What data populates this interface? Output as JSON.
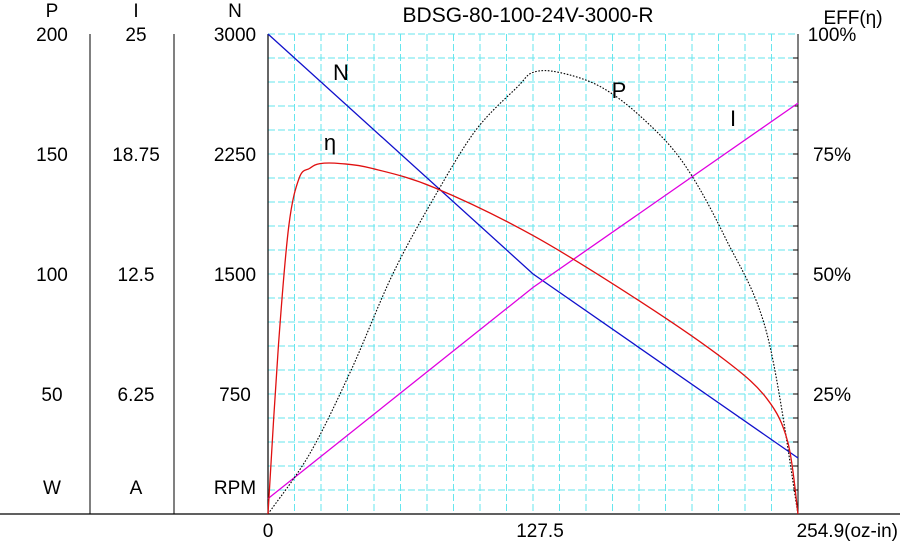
{
  "chart_data": {
    "type": "line",
    "title": "BDSG-80-100-24V-3000-R",
    "colors": {
      "grid": "#66e6ee",
      "N": "#1111cc",
      "eta": "#e01010",
      "I": "#e000e0",
      "P": "#000000"
    },
    "x_axis": {
      "range": [
        0,
        254.9
      ],
      "tick_labels": [
        "0",
        "127.5",
        "254.9(oz-in)"
      ]
    },
    "axes": [
      {
        "key": "P",
        "header": "P",
        "unit": "W",
        "range": [
          0,
          200
        ],
        "ticks": [
          "50",
          "100",
          "150",
          "200"
        ]
      },
      {
        "key": "I",
        "header": "I",
        "unit": "A",
        "range": [
          0,
          25
        ],
        "ticks": [
          "6.25",
          "12.5",
          "18.75",
          "25"
        ]
      },
      {
        "key": "N",
        "header": "N",
        "unit": "RPM",
        "range": [
          0,
          3000
        ],
        "ticks": [
          "750",
          "1500",
          "2250",
          "3000"
        ]
      }
    ],
    "eff_axis": {
      "header": "EFF(η)",
      "range": [
        0,
        100
      ],
      "ticks": [
        "25%",
        "50%",
        "75%",
        "100%"
      ]
    },
    "grid": true,
    "series": [
      {
        "name": "N",
        "axis": "N",
        "style": "solid",
        "x": [
          0,
          127.5,
          254.9
        ],
        "y": [
          3000,
          1500,
          350
        ]
      },
      {
        "name": "I",
        "axis": "I",
        "style": "solid",
        "x": [
          0,
          127.5,
          254.9
        ],
        "y": [
          0.8,
          11.8,
          21.4
        ]
      },
      {
        "name": "P",
        "axis": "P",
        "style": "dotted",
        "x": [
          0,
          20,
          40,
          60,
          80,
          100,
          120,
          127.5,
          140,
          160,
          180,
          200,
          220,
          240,
          254.9
        ],
        "y": [
          0,
          25,
          60,
          100,
          132,
          160,
          178,
          184,
          184,
          178,
          165,
          146,
          115,
          75,
          0
        ]
      },
      {
        "name": "η",
        "axis": "EFF",
        "style": "solid",
        "x": [
          0,
          5,
          10,
          15,
          20,
          25,
          35,
          50,
          80,
          127.5,
          180,
          220,
          240,
          250,
          254.9
        ],
        "y": [
          0,
          35,
          60,
          70,
          72,
          73,
          73,
          72,
          68,
          58,
          44,
          32,
          24,
          15,
          0
        ]
      }
    ]
  }
}
